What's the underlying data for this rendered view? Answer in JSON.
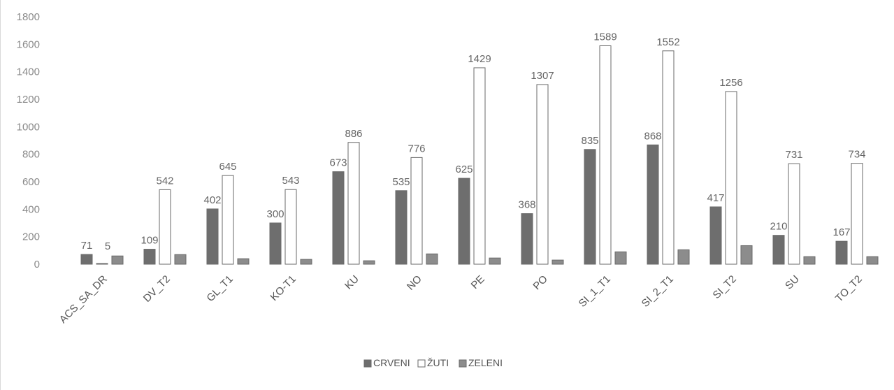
{
  "chart_data": {
    "type": "bar",
    "categories": [
      "ACS_SA_DR",
      "DV_T2",
      "GL_T1",
      "KO-T1",
      "KU",
      "NO",
      "PE",
      "PO",
      "SI_1_T1",
      "SI_2_T1",
      "SI_T2",
      "SU",
      "TO_T2"
    ],
    "series": [
      {
        "name": "CRVENI",
        "values": [
          71,
          109,
          402,
          300,
          673,
          535,
          625,
          368,
          835,
          868,
          417,
          210,
          167
        ]
      },
      {
        "name": "ŽUTI",
        "values": [
          5,
          542,
          645,
          543,
          886,
          776,
          1429,
          1307,
          1589,
          1552,
          1256,
          731,
          734
        ]
      },
      {
        "name": "ZELENI",
        "values": [
          60,
          70,
          40,
          35,
          25,
          75,
          45,
          30,
          90,
          105,
          135,
          55,
          55
        ]
      }
    ],
    "data_labels": {
      "CRVENI": [
        "71",
        "109",
        "402",
        "300",
        "673",
        "535",
        "625",
        "368",
        "835",
        "868",
        "417",
        "210",
        "167"
      ],
      "ŽUTI": [
        "5",
        "542",
        "645",
        "543",
        "886",
        "776",
        "1429",
        "1307",
        "1589",
        "1552",
        "1256",
        "731",
        "734"
      ]
    },
    "yticks": [
      "0",
      "200",
      "400",
      "600",
      "800",
      "1000",
      "1200",
      "1400",
      "1600",
      "1800"
    ],
    "ylim": [
      0,
      1800
    ],
    "title": "",
    "xlabel": "",
    "ylabel": "",
    "grid": false,
    "legend_position": "bottom",
    "colors": {
      "CRVENI": "#6e6e6e",
      "ŽUTI": "#ffffff",
      "ZELENI": "#8c8c8c",
      "outline": "#6a6a6a"
    }
  }
}
